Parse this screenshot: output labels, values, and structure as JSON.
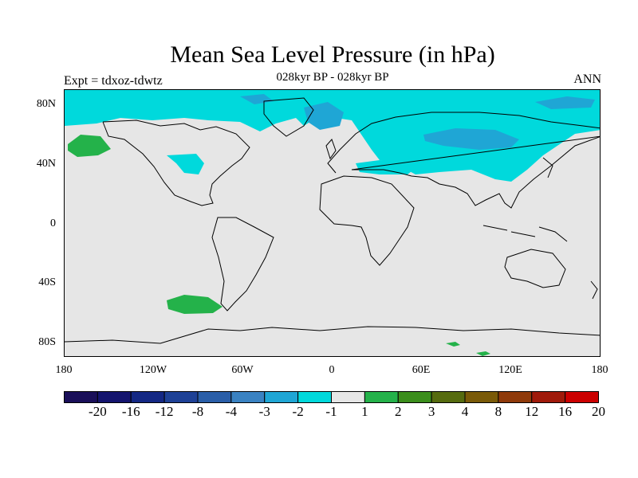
{
  "title": "Mean Sea Level Pressure (in hPa)",
  "subtitle": "028kyr BP - 028kyr BP",
  "left_label": "Expt = tdxoz-tdwtz",
  "right_label": "ANN",
  "y_ticks": [
    "80N",
    "40N",
    "0",
    "40S",
    "80S"
  ],
  "x_ticks": [
    "180",
    "120W",
    "60W",
    "0",
    "60E",
    "120E",
    "180"
  ],
  "colorbar": {
    "labels": [
      "-20",
      "-16",
      "-12",
      "-8",
      "-4",
      "-3",
      "-2",
      "-1",
      "1",
      "2",
      "3",
      "4",
      "8",
      "12",
      "16",
      "20"
    ],
    "colors": [
      "#1a0f59",
      "#14146e",
      "#142884",
      "#1e4196",
      "#2a5ea8",
      "#3a82c2",
      "#1fa6d5",
      "#00d9dc",
      "#e6e6e6",
      "#24b24a",
      "#3b8e1c",
      "#566b0f",
      "#7a5a08",
      "#8f3a0a",
      "#a01a0a",
      "#cc0000"
    ]
  },
  "field_colors": {
    "background": "#e6e6e6",
    "neg_1_2": "#00d9dc",
    "neg_2_3": "#1fa6d5",
    "neg_3_4": "#3a82c2",
    "pos_1_2": "#24b24a"
  }
}
